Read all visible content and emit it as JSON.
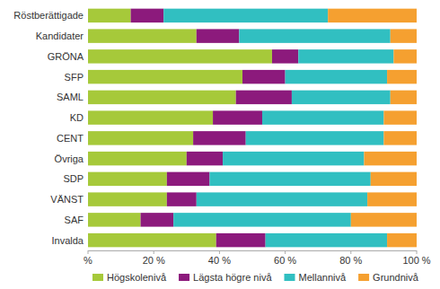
{
  "chart_data": {
    "type": "bar",
    "orientation": "horizontal",
    "stacked": true,
    "grid": false,
    "legend": "bottom",
    "categories": [
      "Röstberättigade",
      "Kandidater",
      "GRÖNA",
      "SFP",
      "SAML",
      "KD",
      "CENT",
      "Övriga",
      "SDP",
      "VÄNST",
      "SAF",
      "Invalda"
    ],
    "series": [
      {
        "name": "Högskolenivå",
        "color": "#a6c93a",
        "values": [
          13,
          33,
          56,
          47,
          45,
          38,
          32,
          30,
          24,
          24,
          16,
          39
        ]
      },
      {
        "name": "Lägsta högre nivå",
        "color": "#8c1a7c",
        "values": [
          10,
          13,
          8,
          13,
          17,
          15,
          16,
          11,
          13,
          9,
          10,
          15
        ]
      },
      {
        "name": "Mellannivå",
        "color": "#31bfc1",
        "values": [
          50,
          46,
          29,
          31,
          30,
          37,
          42,
          43,
          49,
          52,
          54,
          37
        ]
      },
      {
        "name": "Grundnivå",
        "color": "#f5a030",
        "values": [
          27,
          8,
          7,
          9,
          8,
          10,
          10,
          16,
          14,
          15,
          20,
          9
        ]
      }
    ],
    "xlim": [
      0,
      100
    ],
    "xticks": [
      {
        "value": 0,
        "label": "%"
      },
      {
        "value": 20,
        "label": "20 %"
      },
      {
        "value": 40,
        "label": "40 %"
      },
      {
        "value": 60,
        "label": "60 %"
      },
      {
        "value": 80,
        "label": "80 %"
      },
      {
        "value": 100,
        "label": "100 %"
      }
    ]
  }
}
